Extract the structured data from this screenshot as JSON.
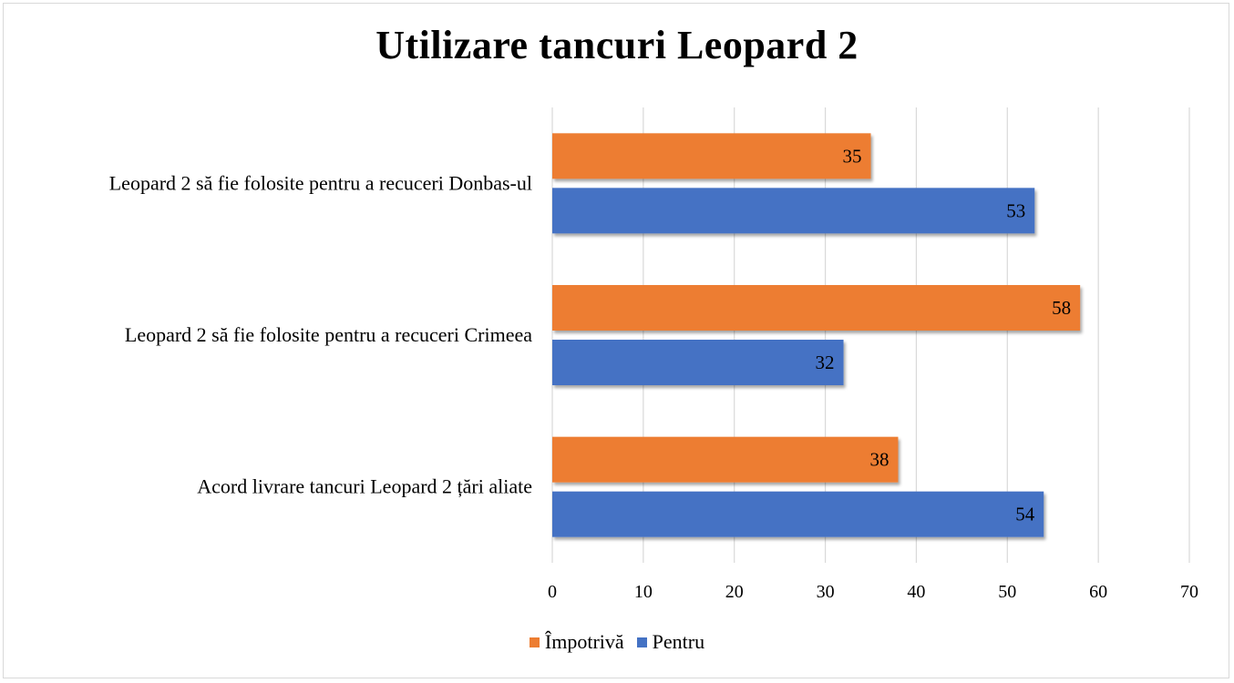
{
  "chart_data": {
    "type": "bar",
    "orientation": "horizontal",
    "title": "Utilizare tancuri Leopard 2",
    "categories": [
      "Leopard 2 să fie folosite pentru a recuceri Donbas-ul",
      "Leopard 2 să fie folosite pentru a recuceri Crimeea",
      "Acord livrare tancuri Leopard 2 țări aliate"
    ],
    "series": [
      {
        "name": "Împotrivă",
        "color": "#ed7d31",
        "values": [
          35,
          58,
          38
        ]
      },
      {
        "name": "Pentru",
        "color": "#4472c4",
        "values": [
          53,
          32,
          54
        ]
      }
    ],
    "xlim": [
      0,
      70
    ],
    "xticks": [
      0,
      10,
      20,
      30,
      40,
      50,
      60,
      70
    ],
    "grid": true,
    "data_labels": true,
    "legend_position": "bottom"
  }
}
